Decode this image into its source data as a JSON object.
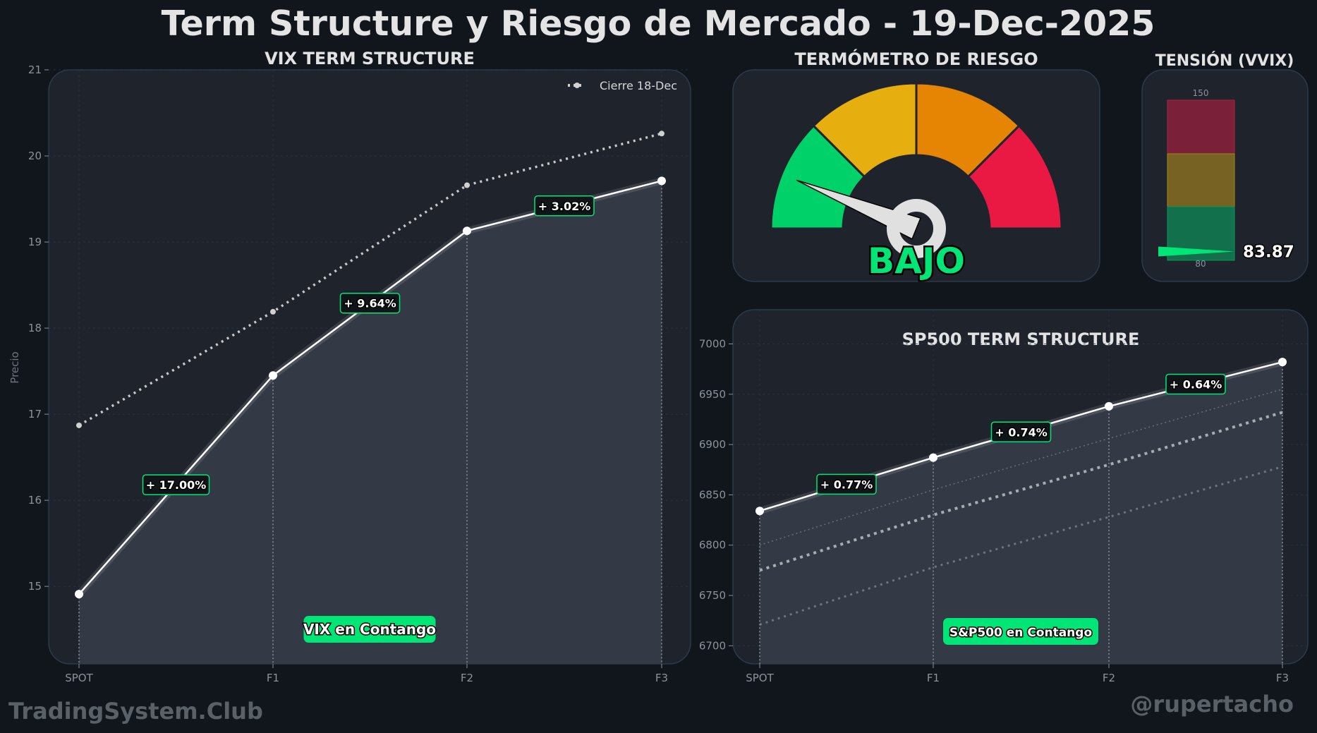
{
  "title": "Term Structure y Riesgo de Mercado - 19-Dec-2025",
  "footer": {
    "left": "TradingSystem.Club",
    "right": "@rupertacho"
  },
  "colors": {
    "background": "#11151c",
    "panel": "#1e232c",
    "accent_green": "#00e676",
    "gauge_green": "#00d26a",
    "gauge_yellow": "#e6ae0e",
    "gauge_orange": "#e68504",
    "gauge_red": "#e91944"
  },
  "gauge": {
    "title": "TERMÓMETRO DE RIESGO",
    "level_label": "BAJO",
    "segments": [
      "green",
      "yellow",
      "orange",
      "red"
    ],
    "needle_segment": "green"
  },
  "vvix": {
    "title": "TENSIÓN (VVIX)",
    "max_label": "150",
    "min_label": "80",
    "min": 80,
    "max": 150,
    "value": 83.87,
    "value_label": "83.87"
  },
  "chart_data": [
    {
      "type": "line",
      "title": "VIX TERM STRUCTURE",
      "xlabel": "",
      "ylabel": "Precio",
      "categories": [
        "SPOT",
        "F1",
        "F2",
        "F3"
      ],
      "ylim": [
        14.1,
        21
      ],
      "yticks": [
        "15",
        "16",
        "17",
        "18",
        "19",
        "20",
        "21"
      ],
      "grid": true,
      "legend": "top-right",
      "series": [
        {
          "values": [
            14.91,
            17.45,
            19.13,
            19.71
          ],
          "style": "solid"
        },
        {
          "name": "Cierre 18-Dec",
          "values": [
            16.87,
            18.19,
            19.66,
            20.26
          ],
          "style": "dotted"
        }
      ],
      "change_labels": [
        "+ 17.00%",
        "+ 9.64%",
        "+ 3.02%"
      ],
      "annotation": "VIX en Contango"
    },
    {
      "type": "line",
      "title": "SP500 TERM STRUCTURE",
      "xlabel": "",
      "ylabel": "",
      "categories": [
        "SPOT",
        "F1",
        "F2",
        "F3"
      ],
      "ylim": [
        6682,
        7034
      ],
      "yticks": [
        "6700",
        "6750",
        "6800",
        "6850",
        "6900",
        "6950",
        "7000"
      ],
      "grid": true,
      "series": [
        {
          "values": [
            6834,
            6887,
            6938,
            6982
          ],
          "style": "solid"
        },
        {
          "values": [
            6800,
            6855,
            6906,
            6955
          ],
          "style": "faint-dotted"
        },
        {
          "values": [
            6775,
            6830,
            6880,
            6932
          ],
          "style": "thick-dotted"
        },
        {
          "values": [
            6721,
            6778,
            6828,
            6878
          ],
          "style": "dotted"
        }
      ],
      "change_labels": [
        "+ 0.77%",
        "+ 0.74%",
        "+ 0.64%"
      ],
      "annotation": "S&P500 en Contango"
    }
  ]
}
